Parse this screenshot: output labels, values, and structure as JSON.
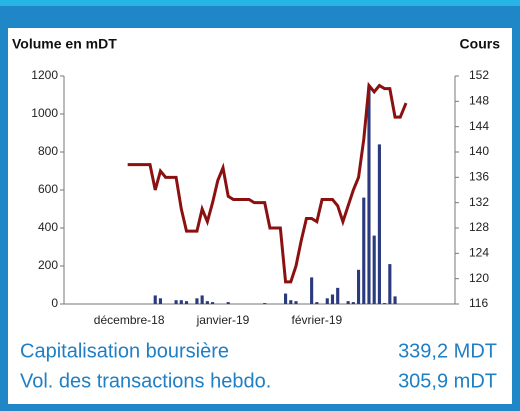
{
  "chart_data": {
    "type": "bar_line",
    "y_label": "Volume en mDT",
    "y2_label": "Cours",
    "categories": [
      null,
      null,
      null,
      null,
      null,
      null,
      null,
      null,
      null,
      null,
      null,
      null,
      "décembre-18",
      null,
      null,
      null,
      null,
      null,
      null,
      null,
      null,
      null,
      null,
      null,
      null,
      null,
      null,
      null,
      null,
      null,
      "janvier-19",
      null,
      null,
      null,
      null,
      null,
      null,
      null,
      null,
      null,
      null,
      null,
      null,
      null,
      null,
      null,
      null,
      null,
      "février-19",
      null,
      null,
      null,
      null,
      null,
      null,
      null,
      null,
      null,
      null,
      null,
      null,
      null,
      null,
      null,
      null,
      null,
      null,
      null,
      null,
      null,
      null,
      null,
      null,
      null,
      null
    ],
    "series": [
      {
        "name": "Volume",
        "type": "bar",
        "color": "#2b3a7e",
        "values": [
          null,
          null,
          null,
          null,
          null,
          null,
          null,
          null,
          null,
          null,
          null,
          null,
          null,
          null,
          null,
          null,
          null,
          45,
          30,
          null,
          null,
          20,
          20,
          15,
          null,
          30,
          45,
          15,
          10,
          null,
          null,
          10,
          null,
          null,
          null,
          null,
          null,
          null,
          5,
          null,
          null,
          null,
          55,
          20,
          15,
          null,
          null,
          140,
          10,
          null,
          30,
          50,
          85,
          null,
          15,
          10,
          180,
          560,
          1150,
          360,
          840,
          5,
          210,
          40,
          null,
          null,
          null,
          null,
          null,
          null,
          null,
          null,
          null,
          null,
          null
        ]
      },
      {
        "name": "Cours",
        "type": "line",
        "axis": "y2",
        "color": "#8b1111",
        "values": [
          null,
          null,
          null,
          null,
          null,
          null,
          null,
          null,
          null,
          null,
          null,
          null,
          138,
          138,
          138,
          138,
          138,
          134,
          137,
          136,
          136,
          136,
          131,
          127.5,
          127.5,
          127.5,
          131,
          129,
          132,
          135.5,
          137.5,
          133,
          132.5,
          132.5,
          132.5,
          132.5,
          132,
          132,
          132,
          128,
          128,
          128,
          119.5,
          119.5,
          122,
          126,
          129.5,
          129.5,
          129,
          132.5,
          132.5,
          132.5,
          131.5,
          129,
          131.5,
          134,
          136,
          142,
          150.5,
          149.5,
          150.5,
          150,
          150,
          145.5,
          145.5,
          147.5,
          null,
          null,
          null,
          null,
          null,
          null,
          null,
          null,
          null
        ]
      }
    ],
    "ylim": [
      0,
      1200
    ],
    "yticks": [
      0,
      200,
      400,
      600,
      800,
      1000,
      1200
    ],
    "y2lim": [
      116,
      152
    ],
    "y2ticks": [
      116,
      120,
      124,
      128,
      132,
      136,
      140,
      144,
      148,
      152
    ],
    "grid": false
  },
  "footer": [
    {
      "label": "Capitalisation boursière",
      "value": "339,2 MDT"
    },
    {
      "label": "Vol. des transactions hebdo.",
      "value": "305,9 mDT"
    }
  ]
}
